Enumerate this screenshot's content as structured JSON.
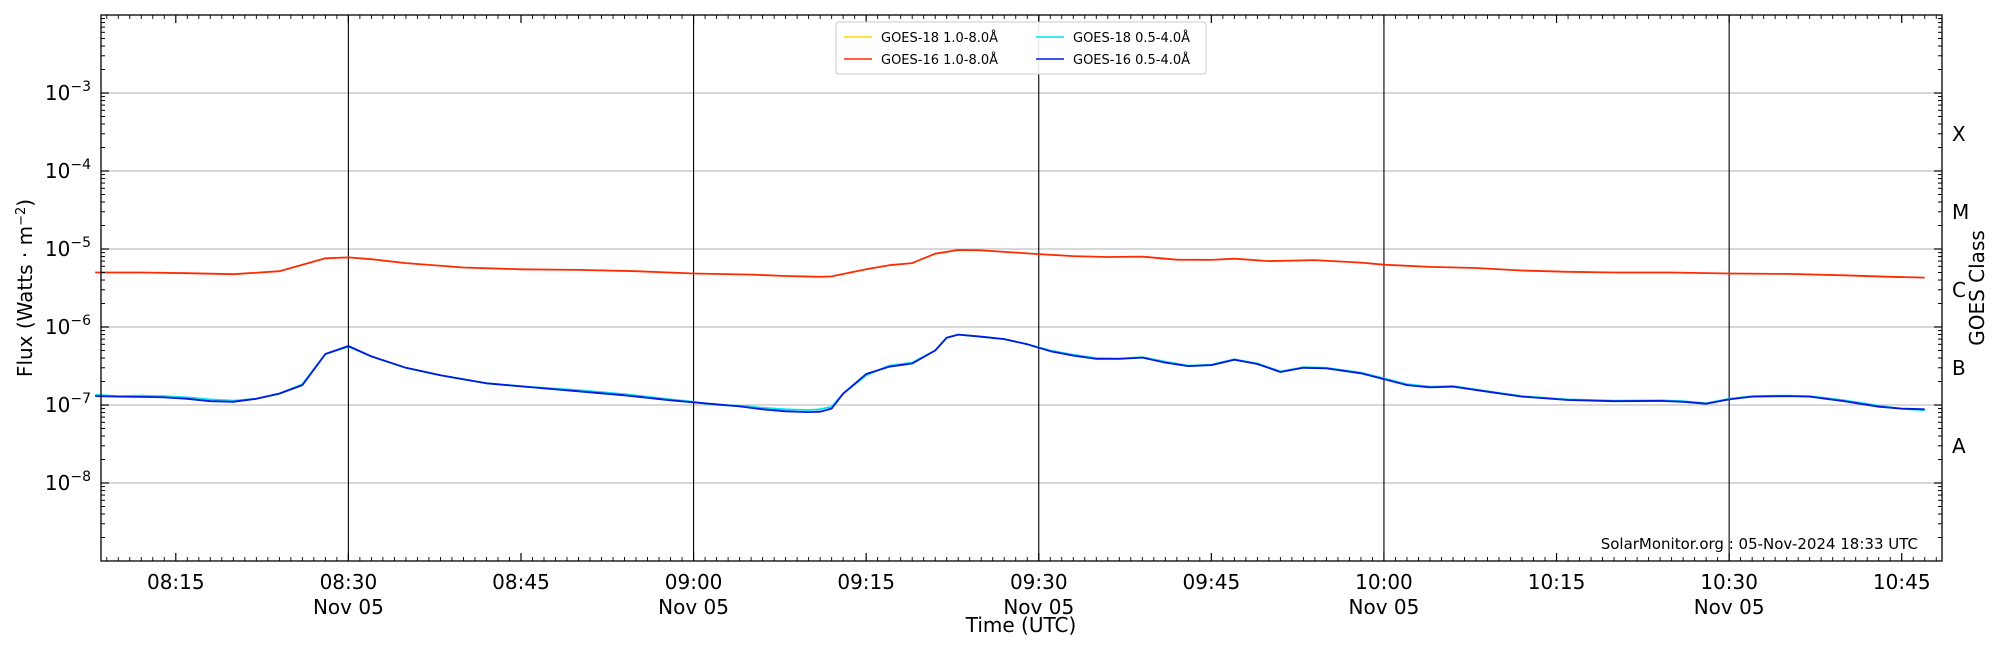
{
  "chart_data": {
    "type": "line",
    "title": "",
    "xlabel": "Time (UTC)",
    "ylabel_text": "Flux (Watts · m",
    "ylabel_sup": "−2",
    "ylabel_close": ")",
    "right_label": "GOES Class",
    "credit": "SolarMonitor.org : 05-Nov-2024 18:33 UTC",
    "y_scale": "log",
    "ylim": [
      1e-09,
      0.01
    ],
    "xlim": [
      "08:08:30",
      "10:48:30"
    ],
    "grid": "horizontal at decades",
    "legend_position": "top-center",
    "y_ticks": [
      {
        "value": 1e-08,
        "base": "10",
        "exp": "−8"
      },
      {
        "value": 1e-07,
        "base": "10",
        "exp": "−7"
      },
      {
        "value": 1e-06,
        "base": "10",
        "exp": "−6"
      },
      {
        "value": 1e-05,
        "base": "10",
        "exp": "−5"
      },
      {
        "value": 0.0001,
        "base": "10",
        "exp": "−4"
      },
      {
        "value": 0.001,
        "base": "10",
        "exp": "−3"
      }
    ],
    "x_ticks": [
      {
        "time": "08:15",
        "label": "08:15",
        "date": ""
      },
      {
        "time": "08:30",
        "label": "08:30",
        "date": "Nov 05"
      },
      {
        "time": "08:45",
        "label": "08:45",
        "date": ""
      },
      {
        "time": "09:00",
        "label": "09:00",
        "date": "Nov 05"
      },
      {
        "time": "09:15",
        "label": "09:15",
        "date": ""
      },
      {
        "time": "09:30",
        "label": "09:30",
        "date": "Nov 05"
      },
      {
        "time": "09:45",
        "label": "09:45",
        "date": ""
      },
      {
        "time": "10:00",
        "label": "10:00",
        "date": "Nov 05"
      },
      {
        "time": "10:15",
        "label": "10:15",
        "date": ""
      },
      {
        "time": "10:30",
        "label": "10:30",
        "date": "Nov 05"
      },
      {
        "time": "10:45",
        "label": "10:45",
        "date": ""
      }
    ],
    "vertical_lines": [
      "08:30",
      "09:00",
      "09:30",
      "10:00",
      "10:30"
    ],
    "goes_classes": [
      {
        "label": "A",
        "flux": 3e-08
      },
      {
        "label": "B",
        "flux": 3e-07
      },
      {
        "label": "C",
        "flux": 3e-06
      },
      {
        "label": "M",
        "flux": 3e-05
      },
      {
        "label": "X",
        "flux": 0.0003
      }
    ],
    "series": [
      {
        "name": "GOES-18 1.0-8.0Å",
        "color": "#ffd700",
        "points": []
      },
      {
        "name": "GOES-18 0.5-4.0Å",
        "color": "#00e5ee",
        "points": [
          [
            "08:08",
            1.35e-07
          ],
          [
            "08:10",
            1.3e-07
          ],
          [
            "08:12",
            1.32e-07
          ],
          [
            "08:14",
            1.3e-07
          ],
          [
            "08:16",
            1.25e-07
          ],
          [
            "08:18",
            1.18e-07
          ],
          [
            "08:20",
            1.14e-07
          ],
          [
            "08:22",
            1.2e-07
          ],
          [
            "08:24",
            1.4e-07
          ],
          [
            "08:26",
            1.85e-07
          ],
          [
            "08:28",
            4.5e-07
          ],
          [
            "08:30",
            5.6e-07
          ],
          [
            "08:32",
            4.2e-07
          ],
          [
            "08:35",
            3e-07
          ],
          [
            "08:38",
            2.4e-07
          ],
          [
            "08:42",
            1.9e-07
          ],
          [
            "08:46",
            1.7e-07
          ],
          [
            "08:50",
            1.55e-07
          ],
          [
            "08:54",
            1.38e-07
          ],
          [
            "08:58",
            1.18e-07
          ],
          [
            "09:00",
            1.1e-07
          ],
          [
            "09:02",
            1e-07
          ],
          [
            "09:04",
            9.8e-08
          ],
          [
            "09:06",
            9.2e-08
          ],
          [
            "09:08",
            8.8e-08
          ],
          [
            "09:10",
            8.6e-08
          ],
          [
            "09:11",
            8.8e-08
          ],
          [
            "09:12",
            9.5e-08
          ],
          [
            "09:13",
            1.4e-07
          ],
          [
            "09:15",
            2.4e-07
          ],
          [
            "09:17",
            3.2e-07
          ],
          [
            "09:19",
            3.5e-07
          ],
          [
            "09:21",
            5e-07
          ],
          [
            "09:22",
            7.3e-07
          ],
          [
            "09:23",
            8e-07
          ],
          [
            "09:25",
            7.5e-07
          ],
          [
            "09:27",
            7e-07
          ],
          [
            "09:29",
            6e-07
          ],
          [
            "09:31",
            5e-07
          ],
          [
            "09:33",
            4.4e-07
          ],
          [
            "09:35",
            4e-07
          ],
          [
            "09:37",
            3.95e-07
          ],
          [
            "09:39",
            4.1e-07
          ],
          [
            "09:41",
            3.6e-07
          ],
          [
            "09:43",
            3.2e-07
          ],
          [
            "09:45",
            3.3e-07
          ],
          [
            "09:47",
            3.85e-07
          ],
          [
            "09:49",
            3.4e-07
          ],
          [
            "09:51",
            2.7e-07
          ],
          [
            "09:53",
            3.05e-07
          ],
          [
            "09:55",
            3e-07
          ],
          [
            "09:58",
            2.6e-07
          ],
          [
            "10:00",
            2.2e-07
          ],
          [
            "10:02",
            1.85e-07
          ],
          [
            "10:04",
            1.72e-07
          ],
          [
            "10:06",
            1.75e-07
          ],
          [
            "10:09",
            1.5e-07
          ],
          [
            "10:12",
            1.3e-07
          ],
          [
            "10:16",
            1.18e-07
          ],
          [
            "10:20",
            1.14e-07
          ],
          [
            "10:24",
            1.15e-07
          ],
          [
            "10:26",
            1.12e-07
          ],
          [
            "10:28",
            1.05e-07
          ],
          [
            "10:30",
            1.2e-07
          ],
          [
            "10:32",
            1.3e-07
          ],
          [
            "10:35",
            1.32e-07
          ],
          [
            "10:37",
            1.3e-07
          ],
          [
            "10:40",
            1.15e-07
          ],
          [
            "10:43",
            9.8e-08
          ],
          [
            "10:45",
            8.9e-08
          ],
          [
            "10:47",
            8.6e-08
          ]
        ]
      },
      {
        "name": "GOES-16 1.0-8.0Å",
        "color": "#ff2a00",
        "points": [
          [
            "08:08",
            5e-06
          ],
          [
            "08:12",
            5e-06
          ],
          [
            "08:16",
            4.9e-06
          ],
          [
            "08:20",
            4.75e-06
          ],
          [
            "08:24",
            5.2e-06
          ],
          [
            "08:26",
            6.3e-06
          ],
          [
            "08:28",
            7.6e-06
          ],
          [
            "08:30",
            7.8e-06
          ],
          [
            "08:32",
            7.4e-06
          ],
          [
            "08:35",
            6.6e-06
          ],
          [
            "08:40",
            5.8e-06
          ],
          [
            "08:45",
            5.5e-06
          ],
          [
            "08:50",
            5.4e-06
          ],
          [
            "08:55",
            5.2e-06
          ],
          [
            "09:00",
            4.85e-06
          ],
          [
            "09:05",
            4.7e-06
          ],
          [
            "09:08",
            4.5e-06
          ],
          [
            "09:11",
            4.4e-06
          ],
          [
            "09:12",
            4.45e-06
          ],
          [
            "09:15",
            5.5e-06
          ],
          [
            "09:17",
            6.2e-06
          ],
          [
            "09:19",
            6.6e-06
          ],
          [
            "09:21",
            8.7e-06
          ],
          [
            "09:23",
            9.7e-06
          ],
          [
            "09:25",
            9.6e-06
          ],
          [
            "09:28",
            9e-06
          ],
          [
            "09:30",
            8.6e-06
          ],
          [
            "09:33",
            8.1e-06
          ],
          [
            "09:36",
            7.9e-06
          ],
          [
            "09:39",
            8e-06
          ],
          [
            "09:42",
            7.3e-06
          ],
          [
            "09:45",
            7.25e-06
          ],
          [
            "09:47",
            7.5e-06
          ],
          [
            "09:50",
            7e-06
          ],
          [
            "09:54",
            7.2e-06
          ],
          [
            "09:58",
            6.7e-06
          ],
          [
            "10:00",
            6.3e-06
          ],
          [
            "10:04",
            5.9e-06
          ],
          [
            "10:08",
            5.7e-06
          ],
          [
            "10:12",
            5.3e-06
          ],
          [
            "10:16",
            5.1e-06
          ],
          [
            "10:20",
            5e-06
          ],
          [
            "10:25",
            5e-06
          ],
          [
            "10:30",
            4.85e-06
          ],
          [
            "10:35",
            4.8e-06
          ],
          [
            "10:40",
            4.6e-06
          ],
          [
            "10:44",
            4.4e-06
          ],
          [
            "10:47",
            4.3e-06
          ]
        ]
      },
      {
        "name": "GOES-16 0.5-4.0Å",
        "color": "#0018e0",
        "points": [
          [
            "08:08",
            1.3e-07
          ],
          [
            "08:10",
            1.28e-07
          ],
          [
            "08:12",
            1.27e-07
          ],
          [
            "08:14",
            1.25e-07
          ],
          [
            "08:16",
            1.2e-07
          ],
          [
            "08:18",
            1.12e-07
          ],
          [
            "08:20",
            1.1e-07
          ],
          [
            "08:22",
            1.2e-07
          ],
          [
            "08:24",
            1.4e-07
          ],
          [
            "08:26",
            1.8e-07
          ],
          [
            "08:28",
            4.5e-07
          ],
          [
            "08:30",
            5.7e-07
          ],
          [
            "08:32",
            4.2e-07
          ],
          [
            "08:35",
            3e-07
          ],
          [
            "08:38",
            2.4e-07
          ],
          [
            "08:42",
            1.9e-07
          ],
          [
            "08:46",
            1.68e-07
          ],
          [
            "08:50",
            1.5e-07
          ],
          [
            "08:54",
            1.33e-07
          ],
          [
            "08:58",
            1.15e-07
          ],
          [
            "09:00",
            1.08e-07
          ],
          [
            "09:02",
            1.02e-07
          ],
          [
            "09:04",
            9.6e-08
          ],
          [
            "09:06",
            8.8e-08
          ],
          [
            "09:08",
            8.3e-08
          ],
          [
            "09:10",
            8.1e-08
          ],
          [
            "09:11",
            8.2e-08
          ],
          [
            "09:12",
            9e-08
          ],
          [
            "09:13",
            1.4e-07
          ],
          [
            "09:15",
            2.5e-07
          ],
          [
            "09:17",
            3.1e-07
          ],
          [
            "09:19",
            3.4e-07
          ],
          [
            "09:21",
            5e-07
          ],
          [
            "09:22",
            7.3e-07
          ],
          [
            "09:23",
            8e-07
          ],
          [
            "09:25",
            7.5e-07
          ],
          [
            "09:27",
            7e-07
          ],
          [
            "09:29",
            6e-07
          ],
          [
            "09:31",
            4.9e-07
          ],
          [
            "09:33",
            4.3e-07
          ],
          [
            "09:35",
            3.9e-07
          ],
          [
            "09:37",
            3.9e-07
          ],
          [
            "09:39",
            4.05e-07
          ],
          [
            "09:41",
            3.5e-07
          ],
          [
            "09:43",
            3.15e-07
          ],
          [
            "09:45",
            3.25e-07
          ],
          [
            "09:47",
            3.8e-07
          ],
          [
            "09:49",
            3.35e-07
          ],
          [
            "09:51",
            2.65e-07
          ],
          [
            "09:53",
            3e-07
          ],
          [
            "09:55",
            2.95e-07
          ],
          [
            "09:58",
            2.55e-07
          ],
          [
            "10:00",
            2.15e-07
          ],
          [
            "10:02",
            1.8e-07
          ],
          [
            "10:04",
            1.68e-07
          ],
          [
            "10:06",
            1.72e-07
          ],
          [
            "10:09",
            1.48e-07
          ],
          [
            "10:12",
            1.28e-07
          ],
          [
            "10:16",
            1.16e-07
          ],
          [
            "10:20",
            1.12e-07
          ],
          [
            "10:24",
            1.13e-07
          ],
          [
            "10:26",
            1.1e-07
          ],
          [
            "10:28",
            1.04e-07
          ],
          [
            "10:30",
            1.18e-07
          ],
          [
            "10:32",
            1.28e-07
          ],
          [
            "10:35",
            1.3e-07
          ],
          [
            "10:37",
            1.28e-07
          ],
          [
            "10:40",
            1.12e-07
          ],
          [
            "10:43",
            9.5e-08
          ],
          [
            "10:45",
            9e-08
          ],
          [
            "10:47",
            8.8e-08
          ]
        ]
      }
    ]
  }
}
